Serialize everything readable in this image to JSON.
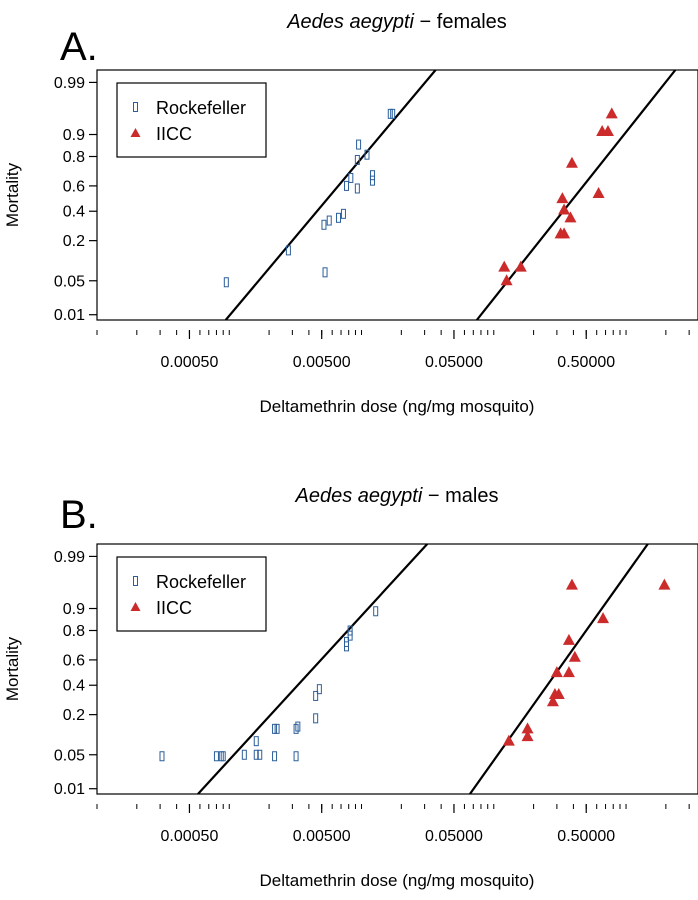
{
  "chart_data": [
    {
      "type": "scatter",
      "panel_label": "A.",
      "title_species": "Aedes aegypti",
      "title_suffix": " − females",
      "xlabel": "Deltamethrin dose (ng/mg mosquito)",
      "ylabel": "Mortality",
      "x_scale": "log",
      "y_scale": "probit",
      "xlim": [
        0.0001,
        3.5
      ],
      "ylim": [
        0.0075,
        0.995
      ],
      "x_ticks": [
        0.0005,
        0.005,
        0.05,
        0.5
      ],
      "x_tick_labels": [
        "0.00050",
        "0.00500",
        "0.05000",
        "0.50000"
      ],
      "y_ticks": [
        0.01,
        0.05,
        0.2,
        0.4,
        0.6,
        0.8,
        0.9,
        0.99
      ],
      "y_tick_labels": [
        "0.01",
        "0.05",
        "0.2",
        "0.4",
        "0.6",
        "0.8",
        "0.9",
        "0.99"
      ],
      "legend_position": "top-left",
      "series": [
        {
          "name": "Rockefeller",
          "marker": "open-square",
          "color": "#2c5f9a",
          "points": [
            [
              0.00095,
              0.047
            ],
            [
              0.0028,
              0.15
            ],
            [
              0.0053,
              0.07
            ],
            [
              0.0052,
              0.3
            ],
            [
              0.0057,
              0.33
            ],
            [
              0.0067,
              0.35
            ],
            [
              0.0073,
              0.38
            ],
            [
              0.0077,
              0.6
            ],
            [
              0.0083,
              0.66
            ],
            [
              0.0093,
              0.58
            ],
            [
              0.0093,
              0.78
            ],
            [
              0.0095,
              0.86
            ],
            [
              0.011,
              0.81
            ],
            [
              0.0121,
              0.64
            ],
            [
              0.0121,
              0.68
            ],
            [
              0.0165,
              0.955
            ],
            [
              0.0172,
              0.955
            ]
          ]
        },
        {
          "name": "IICC",
          "marker": "filled-triangle",
          "color": "#cc2b2b",
          "points": [
            [
              0.12,
              0.085
            ],
            [
              0.125,
              0.05
            ],
            [
              0.16,
              0.085
            ],
            [
              0.32,
              0.24
            ],
            [
              0.34,
              0.24
            ],
            [
              0.33,
              0.5
            ],
            [
              0.34,
              0.41
            ],
            [
              0.38,
              0.35
            ],
            [
              0.39,
              0.76
            ],
            [
              0.62,
              0.54
            ],
            [
              0.66,
              0.91
            ],
            [
              0.73,
              0.91
            ],
            [
              0.78,
              0.955
            ]
          ]
        }
      ],
      "fit_lines": [
        {
          "name": "Rockefeller fit",
          "points": [
            [
              0.00094,
              0.0075
            ],
            [
              0.0363,
              0.995
            ]
          ]
        },
        {
          "name": "IICC fit",
          "points": [
            [
              0.0744,
              0.0075
            ],
            [
              2.36,
              0.995
            ]
          ]
        }
      ]
    },
    {
      "type": "scatter",
      "panel_label": "B.",
      "title_species": "Aedes aegypti",
      "title_suffix": " − males",
      "xlabel": "Deltamethrin dose (ng/mg mosquito)",
      "ylabel": "Mortality",
      "x_scale": "log",
      "y_scale": "probit",
      "xlim": [
        0.0001,
        3.5
      ],
      "ylim": [
        0.0075,
        0.995
      ],
      "x_ticks": [
        0.0005,
        0.005,
        0.05,
        0.5
      ],
      "x_tick_labels": [
        "0.00050",
        "0.00500",
        "0.05000",
        "0.50000"
      ],
      "y_ticks": [
        0.01,
        0.05,
        0.2,
        0.4,
        0.6,
        0.8,
        0.9,
        0.99
      ],
      "y_tick_labels": [
        "0.01",
        "0.05",
        "0.2",
        "0.4",
        "0.6",
        "0.8",
        "0.9",
        "0.99"
      ],
      "legend_position": "top-left",
      "series": [
        {
          "name": "Rockefeller",
          "marker": "open-square",
          "color": "#2c5f9a",
          "points": [
            [
              0.00031,
              0.047
            ],
            [
              0.0008,
              0.047
            ],
            [
              0.00087,
              0.047
            ],
            [
              0.0009,
              0.047
            ],
            [
              0.0013,
              0.05
            ],
            [
              0.0016,
              0.05
            ],
            [
              0.0017,
              0.05
            ],
            [
              0.0016,
              0.085
            ],
            [
              0.0022,
              0.13
            ],
            [
              0.0023,
              0.13
            ],
            [
              0.0022,
              0.047
            ],
            [
              0.0032,
              0.047
            ],
            [
              0.0032,
              0.13
            ],
            [
              0.0033,
              0.14
            ],
            [
              0.0045,
              0.18
            ],
            [
              0.0045,
              0.32
            ],
            [
              0.0048,
              0.37
            ],
            [
              0.0077,
              0.7
            ],
            [
              0.0077,
              0.73
            ],
            [
              0.0082,
              0.77
            ],
            [
              0.0082,
              0.8
            ],
            [
              0.0128,
              0.89
            ]
          ]
        },
        {
          "name": "IICC",
          "marker": "filled-triangle",
          "color": "#cc2b2b",
          "points": [
            [
              0.13,
              0.085
            ],
            [
              0.18,
              0.1
            ],
            [
              0.18,
              0.13
            ],
            [
              0.28,
              0.28
            ],
            [
              0.29,
              0.33
            ],
            [
              0.31,
              0.33
            ],
            [
              0.3,
              0.5
            ],
            [
              0.37,
              0.5
            ],
            [
              0.37,
              0.74
            ],
            [
              0.41,
              0.62
            ],
            [
              0.39,
              0.96
            ],
            [
              0.67,
              0.86
            ],
            [
              1.95,
              0.96
            ]
          ]
        }
      ],
      "fit_lines": [
        {
          "name": "Rockefeller fit",
          "points": [
            [
              0.00058,
              0.0075
            ],
            [
              0.0314,
              0.995
            ]
          ]
        },
        {
          "name": "IICC fit",
          "points": [
            [
              0.066,
              0.0075
            ],
            [
              1.46,
              0.995
            ]
          ]
        }
      ]
    }
  ]
}
